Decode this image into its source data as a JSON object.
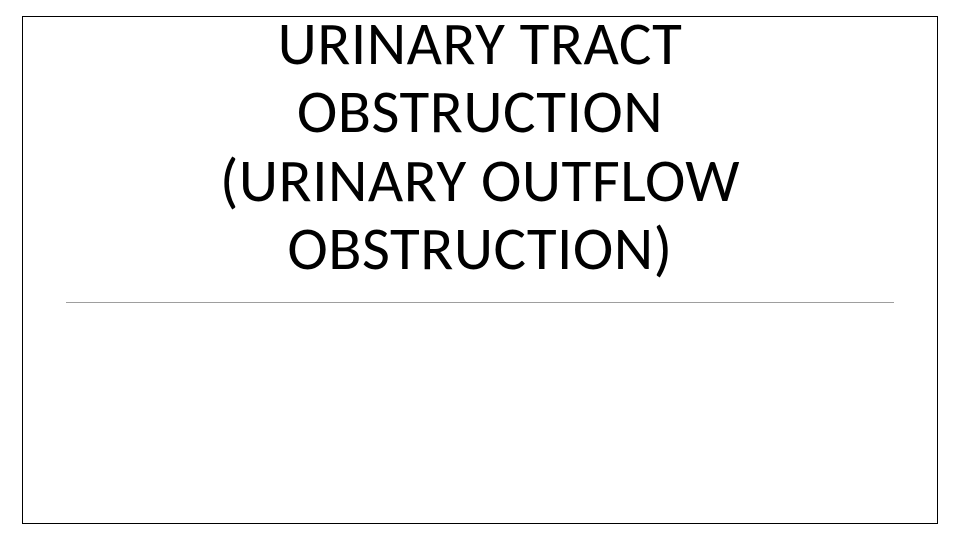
{
  "slide": {
    "title_line1": "URINARY TRACT",
    "title_line2": "OBSTRUCTION",
    "title_line3": "(URINARY OUTFLOW",
    "title_line4": "OBSTRUCTION)",
    "styling": {
      "background_color": "#ffffff",
      "border_color": "#000000",
      "border_width": 1.5,
      "title_fontsize": 61,
      "title_fontweight": 300,
      "title_color": "#000000",
      "underline_color": "#9e9e9e",
      "font_family": "Segoe UI Light"
    }
  }
}
